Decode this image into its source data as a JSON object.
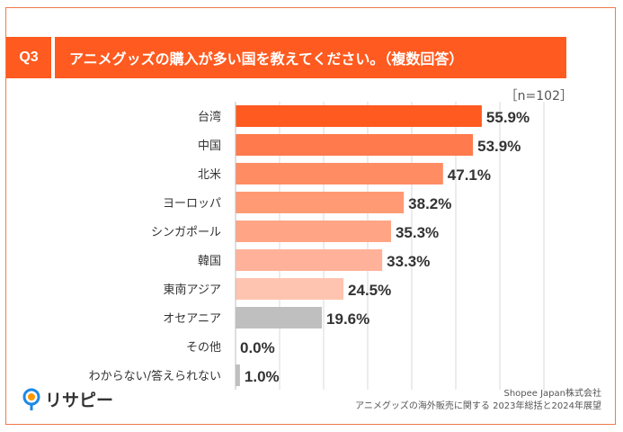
{
  "header": {
    "question_badge": "Q3",
    "title": "アニメグッズの購入が多い国を教えてください。（複数回答）",
    "sample_note": "［n=102］"
  },
  "chart_data": {
    "type": "bar",
    "orientation": "horizontal",
    "title": "アニメグッズの購入が多い国を教えてください。（複数回答）",
    "categories": [
      "台湾",
      "中国",
      "北米",
      "ヨーロッパ",
      "シンガポール",
      "韓国",
      "東南アジア",
      "オセアニア",
      "その他",
      "わからない/答えられない"
    ],
    "values": [
      55.9,
      53.9,
      47.1,
      38.2,
      35.3,
      33.3,
      24.5,
      19.6,
      0.0,
      1.0
    ],
    "value_labels": [
      "55.9%",
      "53.9%",
      "47.1%",
      "38.2%",
      "35.3%",
      "33.3%",
      "24.5%",
      "19.6%",
      "0.0%",
      "1.0%"
    ],
    "colors": [
      "#ff5a1f",
      "#ff7a4c",
      "#ff8c62",
      "#ff9a74",
      "#ffa585",
      "#ffb299",
      "#ffc4b0",
      "#bfbfbf",
      "#bfbfbf",
      "#bfbfbf"
    ],
    "xlim": [
      0,
      70
    ],
    "grid": true,
    "unit": "%"
  },
  "footer": {
    "logo_text": "リサピー",
    "source_line1": "Shopee Japan株式会社",
    "source_line2": "アニメグッズの海外販売に関する 2023年総括と2024年展望"
  }
}
